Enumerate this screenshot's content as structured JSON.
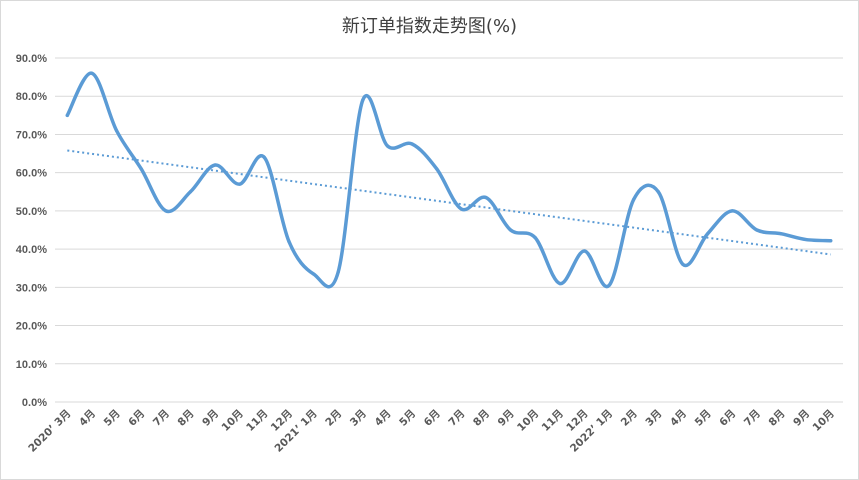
{
  "chart_data": {
    "type": "line",
    "title": "新订单指数走势图(%)",
    "xlabel": "",
    "ylabel": "",
    "ylim": [
      0,
      90
    ],
    "grid": true,
    "legend": "none",
    "categories": [
      "2020’ 3月",
      "4月",
      "5月",
      "6月",
      "7月",
      "8月",
      "9月",
      "10月",
      "11月",
      "12月",
      "2021’ 1月",
      "2月",
      "3月",
      "4月",
      "5月",
      "6月",
      "7月",
      "8月",
      "9月",
      "10月",
      "11月",
      "12月",
      "2022’ 1月",
      "2月",
      "3月",
      "4月",
      "5月",
      "6月",
      "7月",
      "8月",
      "9月",
      "10月"
    ],
    "yticks": [
      "0.0%",
      "10.0%",
      "20.0%",
      "30.0%",
      "40.0%",
      "50.0%",
      "60.0%",
      "70.0%",
      "80.0%",
      "90.0%"
    ],
    "series": [
      {
        "values": [
          75.0,
          86.0,
          71.0,
          61.0,
          50.0,
          55.0,
          62.0,
          57.0,
          64.0,
          42.0,
          33.5,
          34.0,
          79.0,
          67.0,
          67.5,
          61.0,
          50.5,
          53.5,
          45.0,
          43.0,
          31.0,
          39.5,
          30.5,
          53.0,
          55.0,
          36.0,
          44.0,
          50.0,
          45.0,
          44.0,
          42.5,
          42.2
        ],
        "color": "#5b9bd5"
      }
    ],
    "trendline": {
      "start": 65.8,
      "end": 38.6,
      "color": "#5b9bd5",
      "style": "dotted"
    }
  }
}
